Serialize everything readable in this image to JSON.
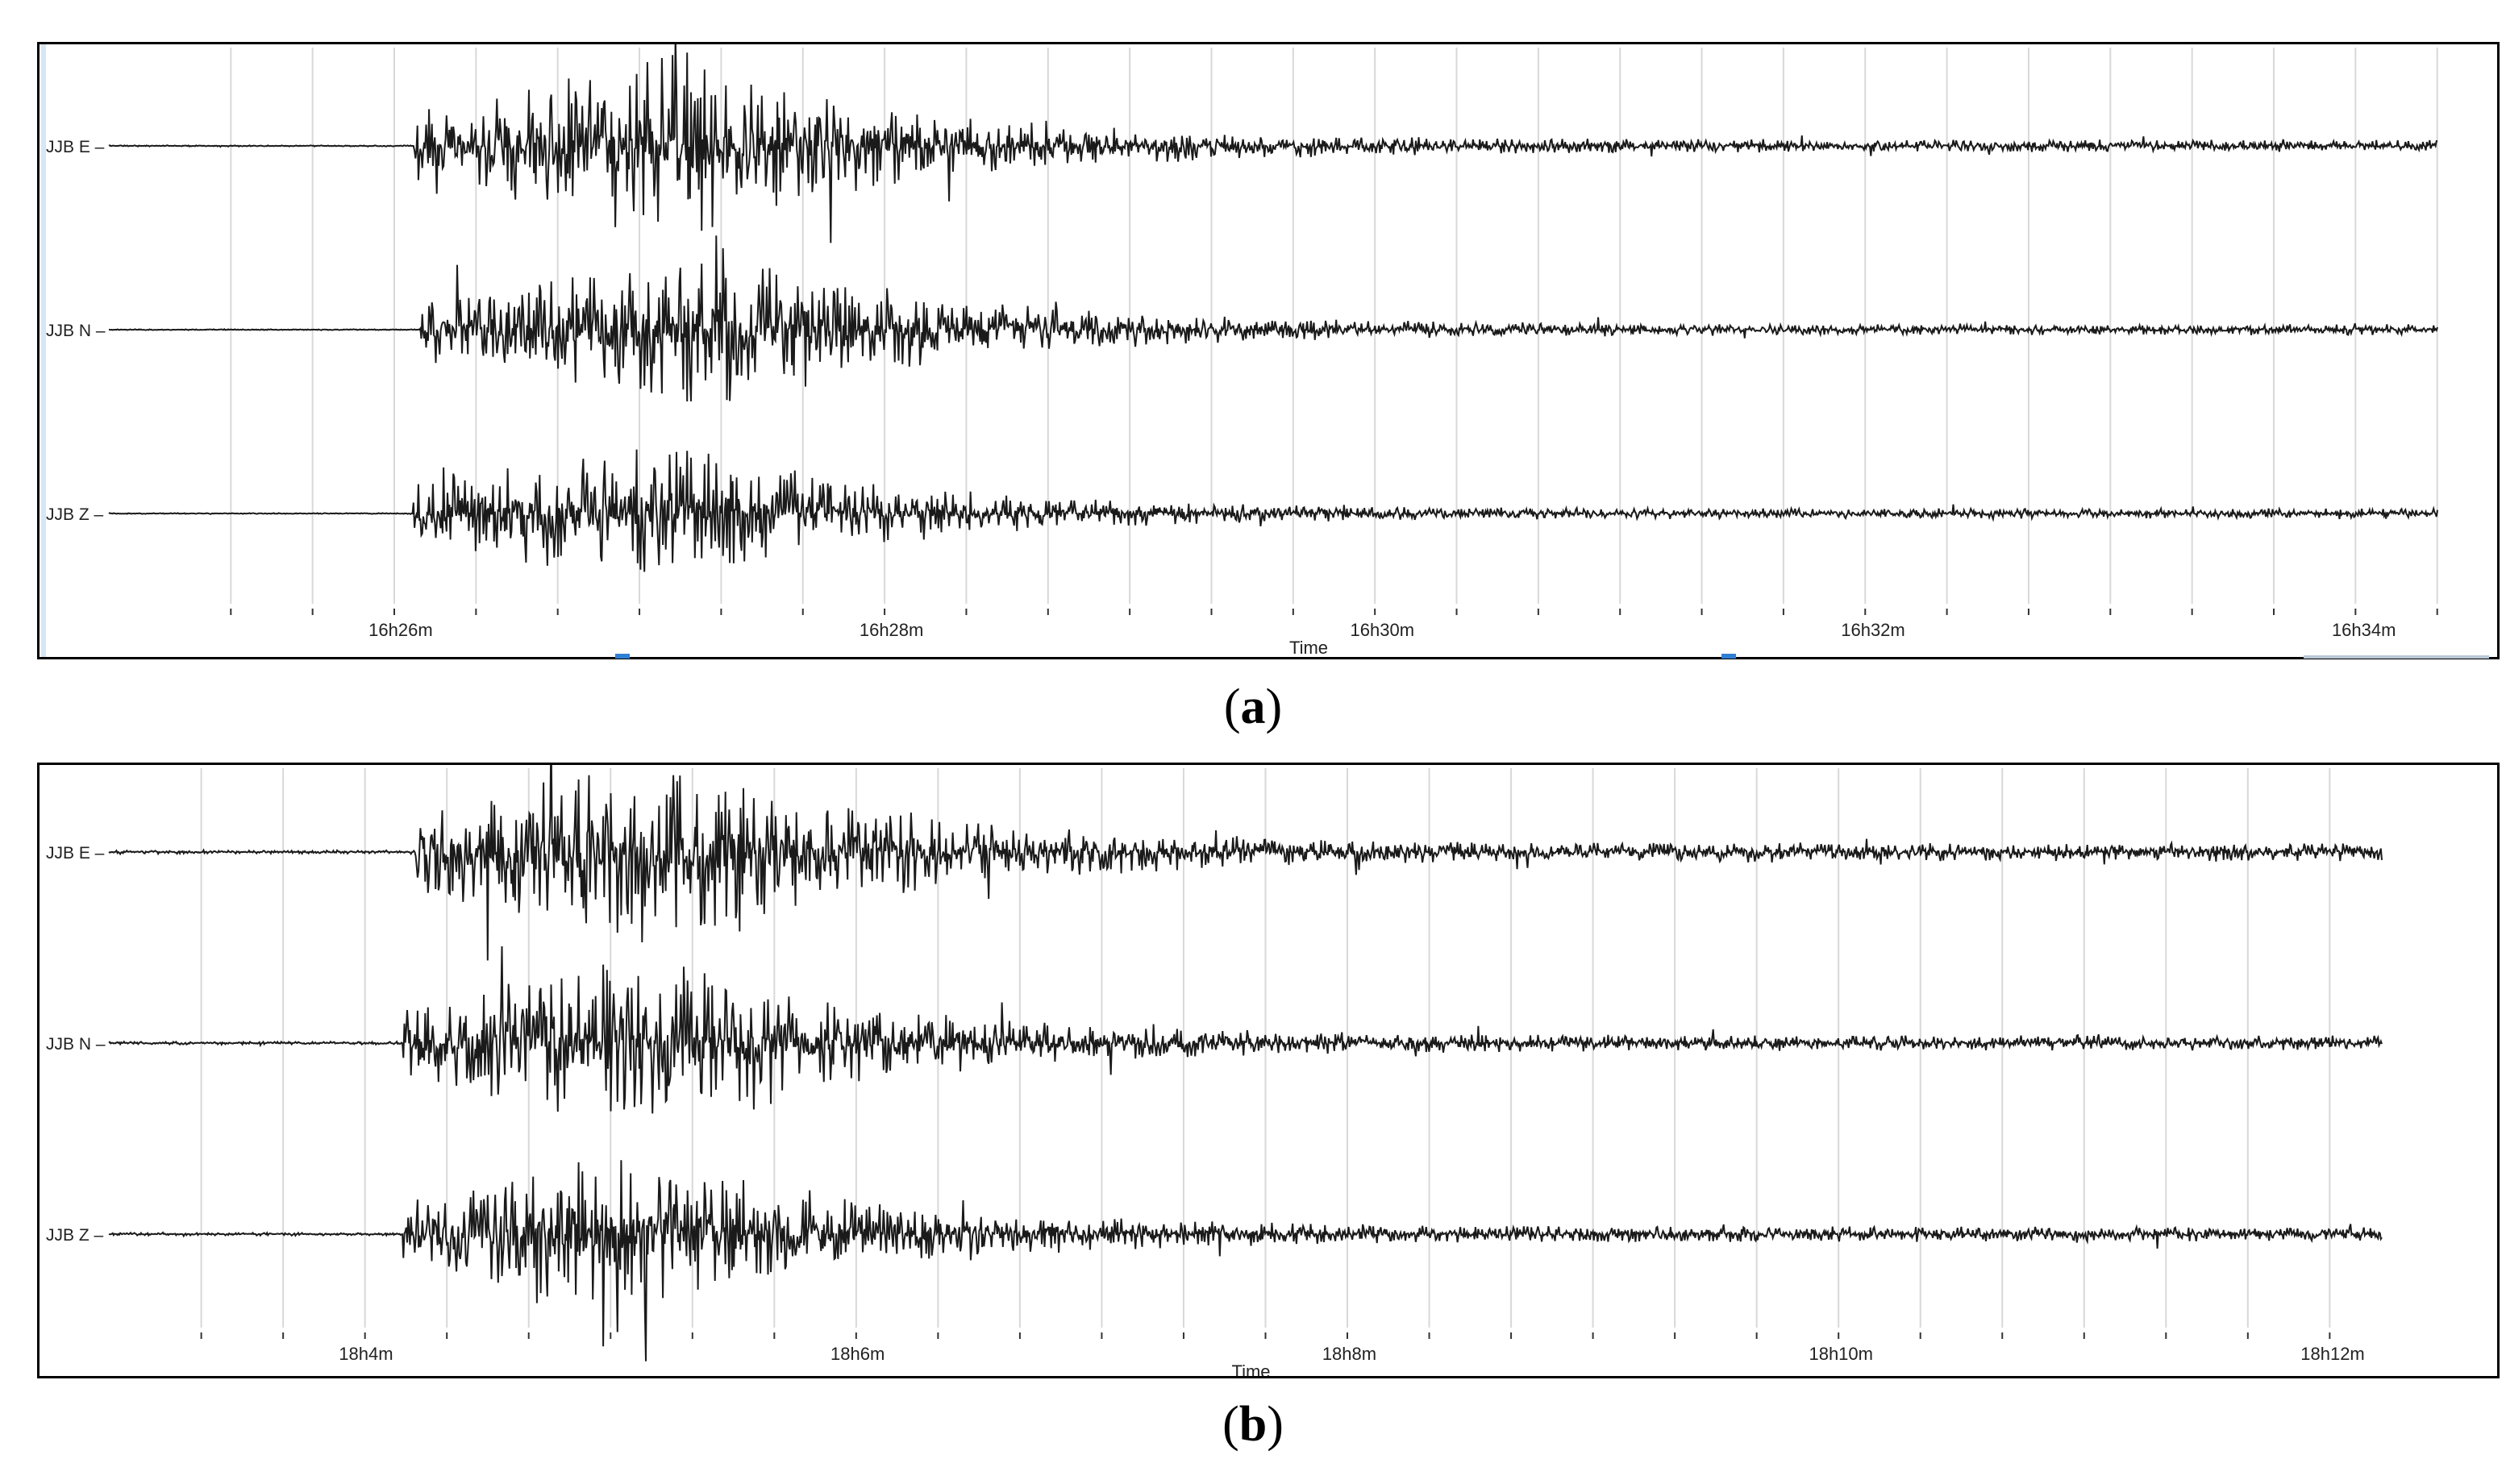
{
  "captions": {
    "a_open": "(",
    "a_letter": "a",
    "a_close": ")",
    "b_open": "(",
    "b_letter": "b",
    "b_close": ")"
  },
  "colors": {
    "trace": "#1a1a1a",
    "grid": "#d8d8d8",
    "frame": "#000000",
    "marker": "#2f7fd4"
  },
  "chart_data": [
    {
      "type": "line",
      "panel": "a",
      "xlabel": "Time",
      "ylabel": "",
      "x_range_minutes": [
        25.1,
        34.3
      ],
      "x_ticks": [
        {
          "minute": 26,
          "label": "16h26m"
        },
        {
          "minute": 28,
          "label": "16h28m"
        },
        {
          "minute": 30,
          "label": "16h30m"
        },
        {
          "minute": 32,
          "label": "16h32m"
        },
        {
          "minute": 34,
          "label": "16h34m"
        }
      ],
      "minor_tick_step_minutes": 0.333,
      "series": [
        {
          "name": "JJB E",
          "onset_minute": 26.05,
          "peak_minute": 27.1,
          "amplitude": 1.0,
          "seed": 11
        },
        {
          "name": "JJB N",
          "onset_minute": 26.08,
          "peak_minute": 27.25,
          "amplitude": 0.85,
          "seed": 23
        },
        {
          "name": "JJB Z",
          "onset_minute": 26.05,
          "peak_minute": 27.0,
          "amplitude": 0.8,
          "seed": 37
        }
      ]
    },
    {
      "type": "line",
      "panel": "b",
      "xlabel": "Time",
      "ylabel": "",
      "x_range_minutes": [
        3.0,
        12.2
      ],
      "x_ticks": [
        {
          "minute": 4,
          "label": "18h4m"
        },
        {
          "minute": 6,
          "label": "18h6m"
        },
        {
          "minute": 8,
          "label": "18h8m"
        },
        {
          "minute": 10,
          "label": "18h10m"
        },
        {
          "minute": 12,
          "label": "18h12m"
        }
      ],
      "minor_tick_step_minutes": 0.333,
      "series": [
        {
          "name": "JJB E",
          "onset_minute": 4.2,
          "peak_minute": 5.2,
          "amplitude": 1.1,
          "seed": 51
        },
        {
          "name": "JJB N",
          "onset_minute": 4.15,
          "peak_minute": 5.1,
          "amplitude": 0.95,
          "seed": 67
        },
        {
          "name": "JJB Z",
          "onset_minute": 4.15,
          "peak_minute": 5.0,
          "amplitude": 0.95,
          "seed": 79
        }
      ]
    }
  ]
}
